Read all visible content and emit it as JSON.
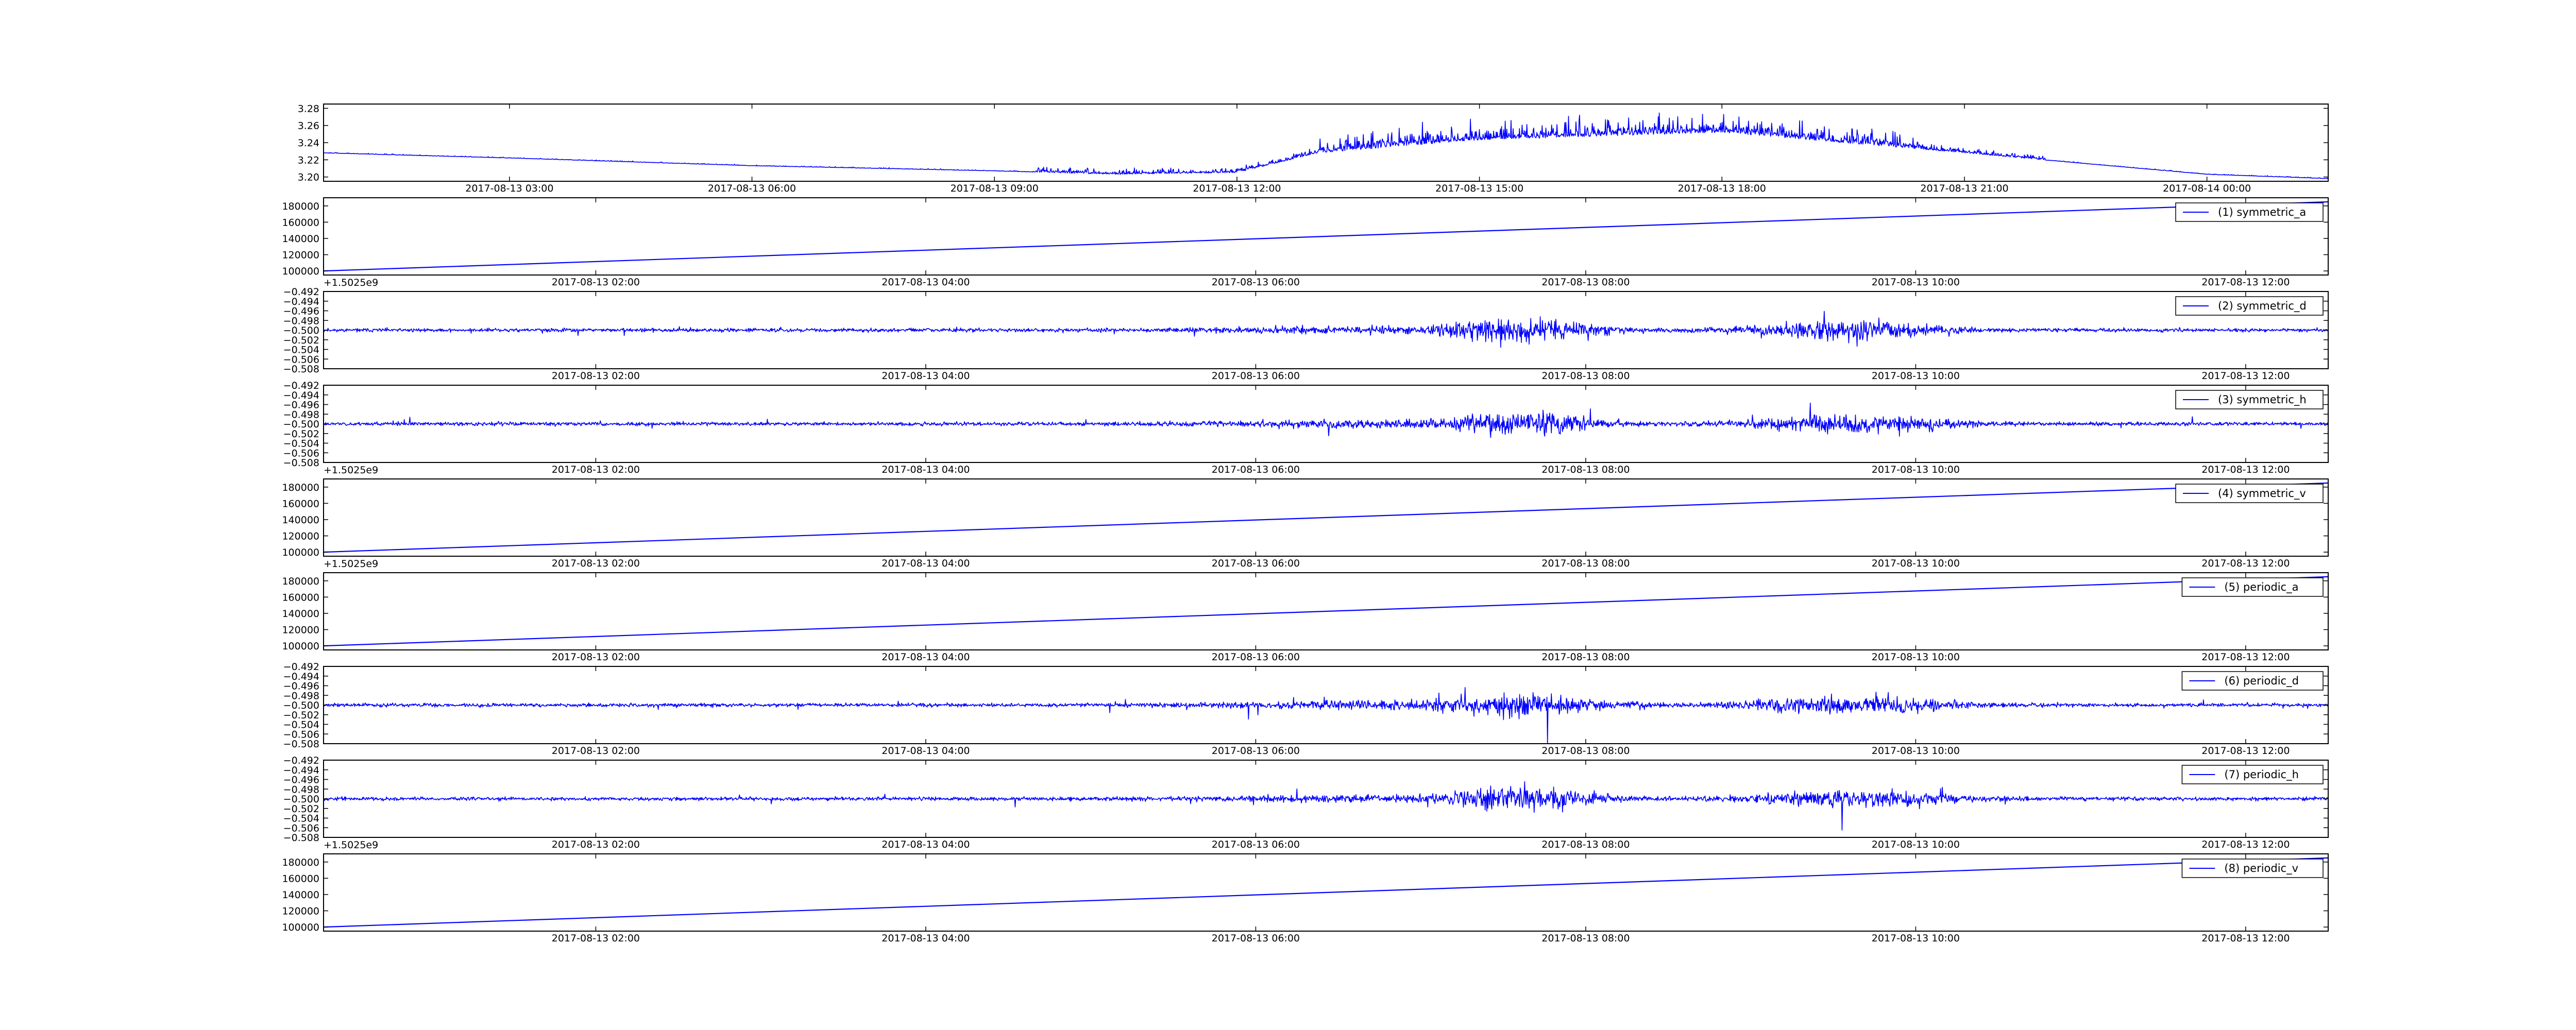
{
  "chart_data": [
    {
      "type": "line",
      "title": "",
      "xlabel": "",
      "ylabel": "",
      "offset_label": "",
      "y_ticks": [
        "3.20",
        "3.22",
        "3.24",
        "3.26",
        "3.28"
      ],
      "ylim": [
        3.195,
        3.285
      ],
      "x_ticks": [
        "2017-08-13 03:00",
        "2017-08-13 06:00",
        "2017-08-13 09:00",
        "2017-08-13 12:00",
        "2017-08-13 15:00",
        "2017-08-13 18:00",
        "2017-08-13 21:00",
        "2017-08-14 00:00"
      ],
      "xlim": [
        0.7,
        25.5
      ],
      "x_tick_pos": [
        3,
        6,
        9,
        12,
        15,
        18,
        21,
        24
      ],
      "legend": "",
      "series": [
        {
          "color": "#0000ff",
          "shape": "voltage-day",
          "x": [
            0.7,
            3,
            6,
            9,
            10.5,
            12,
            13,
            15,
            18,
            21,
            24,
            25.5
          ],
          "values": [
            3.228,
            3.222,
            3.213,
            3.207,
            3.203,
            3.205,
            3.228,
            3.243,
            3.252,
            3.228,
            3.203,
            3.198
          ]
        }
      ]
    },
    {
      "type": "line",
      "offset_label": "+1.5025e9",
      "y_ticks": [
        "100000",
        "120000",
        "140000",
        "160000",
        "180000"
      ],
      "ylim": [
        95000,
        190000
      ],
      "x_ticks": [
        "2017-08-13 02:00",
        "2017-08-13 04:00",
        "2017-08-13 06:00",
        "2017-08-13 08:00",
        "2017-08-13 10:00",
        "2017-08-13 12:00"
      ],
      "xlim": [
        0.35,
        12.5
      ],
      "x_tick_pos": [
        2,
        4,
        6,
        8,
        10,
        12
      ],
      "legend": "(1) symmetric_a",
      "series": [
        {
          "color": "#0000ff",
          "shape": "ramp",
          "x": [
            0.35,
            12.5
          ],
          "values": [
            100000,
            185000
          ]
        }
      ]
    },
    {
      "type": "line",
      "offset_label": "",
      "y_ticks": [
        "−0.508",
        "−0.506",
        "−0.504",
        "−0.502",
        "−0.500",
        "−0.498",
        "−0.496",
        "−0.494",
        "−0.492"
      ],
      "ylim": [
        -0.508,
        -0.492
      ],
      "x_ticks": [
        "2017-08-13 02:00",
        "2017-08-13 04:00",
        "2017-08-13 06:00",
        "2017-08-13 08:00",
        "2017-08-13 10:00",
        "2017-08-13 12:00"
      ],
      "xlim": [
        0.35,
        12.5
      ],
      "x_tick_pos": [
        2,
        4,
        6,
        8,
        10,
        12
      ],
      "legend": "(2) symmetric_d",
      "series": [
        {
          "color": "#0000ff",
          "shape": "noise",
          "center": -0.5,
          "seed": 11
        }
      ]
    },
    {
      "type": "line",
      "offset_label": "+1.5025e9",
      "y_ticks": [
        "−0.508",
        "−0.506",
        "−0.504",
        "−0.502",
        "−0.500",
        "−0.498",
        "−0.496",
        "−0.494",
        "−0.492"
      ],
      "ylim": [
        -0.508,
        -0.492
      ],
      "x_ticks": [
        "2017-08-13 02:00",
        "2017-08-13 04:00",
        "2017-08-13 06:00",
        "2017-08-13 08:00",
        "2017-08-13 10:00",
        "2017-08-13 12:00"
      ],
      "xlim": [
        0.35,
        12.5
      ],
      "x_tick_pos": [
        2,
        4,
        6,
        8,
        10,
        12
      ],
      "legend": "(3) symmetric_h",
      "series": [
        {
          "color": "#0000ff",
          "shape": "noise",
          "center": -0.5,
          "seed": 23
        }
      ]
    },
    {
      "type": "line",
      "offset_label": "+1.5025e9",
      "y_ticks": [
        "100000",
        "120000",
        "140000",
        "160000",
        "180000"
      ],
      "ylim": [
        95000,
        190000
      ],
      "x_ticks": [
        "2017-08-13 02:00",
        "2017-08-13 04:00",
        "2017-08-13 06:00",
        "2017-08-13 08:00",
        "2017-08-13 10:00",
        "2017-08-13 12:00"
      ],
      "xlim": [
        0.35,
        12.5
      ],
      "x_tick_pos": [
        2,
        4,
        6,
        8,
        10,
        12
      ],
      "legend": "(4) symmetric_v",
      "series": [
        {
          "color": "#0000ff",
          "shape": "ramp",
          "x": [
            0.35,
            12.5
          ],
          "values": [
            100000,
            185000
          ]
        }
      ]
    },
    {
      "type": "line",
      "offset_label": "",
      "y_ticks": [
        "100000",
        "120000",
        "140000",
        "160000",
        "180000"
      ],
      "ylim": [
        95000,
        190000
      ],
      "x_ticks": [
        "2017-08-13 02:00",
        "2017-08-13 04:00",
        "2017-08-13 06:00",
        "2017-08-13 08:00",
        "2017-08-13 10:00",
        "2017-08-13 12:00"
      ],
      "xlim": [
        0.35,
        12.5
      ],
      "x_tick_pos": [
        2,
        4,
        6,
        8,
        10,
        12
      ],
      "legend": "(5) periodic_a",
      "series": [
        {
          "color": "#0000ff",
          "shape": "ramp",
          "x": [
            0.35,
            12.5
          ],
          "values": [
            100000,
            185000
          ]
        }
      ]
    },
    {
      "type": "line",
      "offset_label": "",
      "y_ticks": [
        "−0.508",
        "−0.506",
        "−0.504",
        "−0.502",
        "−0.500",
        "−0.498",
        "−0.496",
        "−0.494",
        "−0.492"
      ],
      "ylim": [
        -0.508,
        -0.492
      ],
      "x_ticks": [
        "2017-08-13 02:00",
        "2017-08-13 04:00",
        "2017-08-13 06:00",
        "2017-08-13 08:00",
        "2017-08-13 10:00",
        "2017-08-13 12:00"
      ],
      "xlim": [
        0.35,
        12.5
      ],
      "x_tick_pos": [
        2,
        4,
        6,
        8,
        10,
        12
      ],
      "legend": "(6) periodic_d",
      "series": [
        {
          "color": "#0000ff",
          "shape": "noise",
          "center": -0.5,
          "seed": 37
        }
      ]
    },
    {
      "type": "line",
      "offset_label": "+1.5025e9",
      "y_ticks": [
        "−0.508",
        "−0.506",
        "−0.504",
        "−0.502",
        "−0.500",
        "−0.498",
        "−0.496",
        "−0.494",
        "−0.492"
      ],
      "ylim": [
        -0.508,
        -0.492
      ],
      "x_ticks": [
        "2017-08-13 02:00",
        "2017-08-13 04:00",
        "2017-08-13 06:00",
        "2017-08-13 08:00",
        "2017-08-13 10:00",
        "2017-08-13 12:00"
      ],
      "xlim": [
        0.35,
        12.5
      ],
      "x_tick_pos": [
        2,
        4,
        6,
        8,
        10,
        12
      ],
      "legend": "(7) periodic_h",
      "series": [
        {
          "color": "#0000ff",
          "shape": "noise",
          "center": -0.5,
          "seed": 53
        }
      ]
    },
    {
      "type": "line",
      "offset_label": "",
      "y_ticks": [
        "100000",
        "120000",
        "140000",
        "160000",
        "180000"
      ],
      "ylim": [
        95000,
        190000
      ],
      "x_ticks": [
        "2017-08-13 02:00",
        "2017-08-13 04:00",
        "2017-08-13 06:00",
        "2017-08-13 08:00",
        "2017-08-13 10:00",
        "2017-08-13 12:00"
      ],
      "xlim": [
        0.35,
        12.5
      ],
      "x_tick_pos": [
        2,
        4,
        6,
        8,
        10,
        12
      ],
      "legend": "(8) periodic_v",
      "series": [
        {
          "color": "#0000ff",
          "shape": "ramp",
          "x": [
            0.35,
            12.5
          ],
          "values": [
            100000,
            185000
          ]
        }
      ]
    }
  ]
}
